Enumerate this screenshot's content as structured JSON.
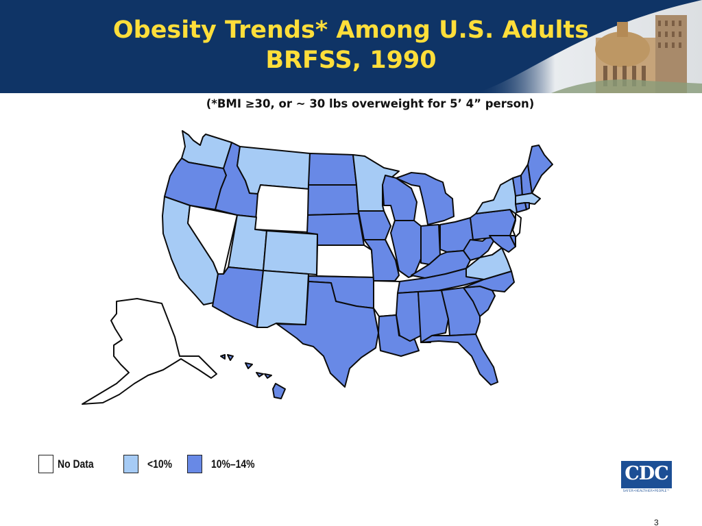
{
  "header": {
    "title_line1": "Obesity Trends* Among U.S. Adults",
    "title_line2": "BRFSS, 1990",
    "subtitle": "(*BMI ≥30, or ~ 30 lbs overweight for 5’ 4” person)"
  },
  "colors": {
    "banner": "#0f3466",
    "title": "#ffde3a",
    "no_data": "#ffffff",
    "lt10": "#a6cbf5",
    "10to14": "#6889e6",
    "outline": "#0b0b0b",
    "cdc_blue": "#1c4f95"
  },
  "legend": [
    {
      "key": "no_data",
      "label": "No Data"
    },
    {
      "key": "lt10",
      "label": "<10%"
    },
    {
      "key": "10to14",
      "label": "10%–14%"
    }
  ],
  "states": {
    "WA": "lt10",
    "OR": "10to14",
    "CA": "lt10",
    "NV": "no_data",
    "ID": "10to14",
    "MT": "lt10",
    "WY": "no_data",
    "UT": "lt10",
    "CO": "lt10",
    "AZ": "10to14",
    "NM": "lt10",
    "ND": "10to14",
    "SD": "10to14",
    "NE": "10to14",
    "KS": "no_data",
    "OK": "10to14",
    "TX": "10to14",
    "MN": "lt10",
    "IA": "10to14",
    "MO": "10to14",
    "AR": "no_data",
    "LA": "10to14",
    "WI": "10to14",
    "IL": "10to14",
    "MI": "10to14",
    "IN": "10to14",
    "OH": "10to14",
    "KY": "10to14",
    "TN": "10to14",
    "MS": "10to14",
    "AL": "10to14",
    "GA": "10to14",
    "FL": "10to14",
    "SC": "10to14",
    "NC": "10to14",
    "VA": "lt10",
    "WV": "10to14",
    "PA": "10to14",
    "NY": "lt10",
    "VT": "10to14",
    "NH": "10to14",
    "ME": "10to14",
    "MA": "lt10",
    "RI": "10to14",
    "CT": "10to14",
    "NJ": "no_data",
    "DE": "10to14",
    "MD": "10to14",
    "AK": "no_data",
    "HI": "10to14"
  },
  "logo": {
    "text": "CDC",
    "tagline": "SAFER•HEALTHIER•PEOPLE™"
  },
  "page_number": "3"
}
